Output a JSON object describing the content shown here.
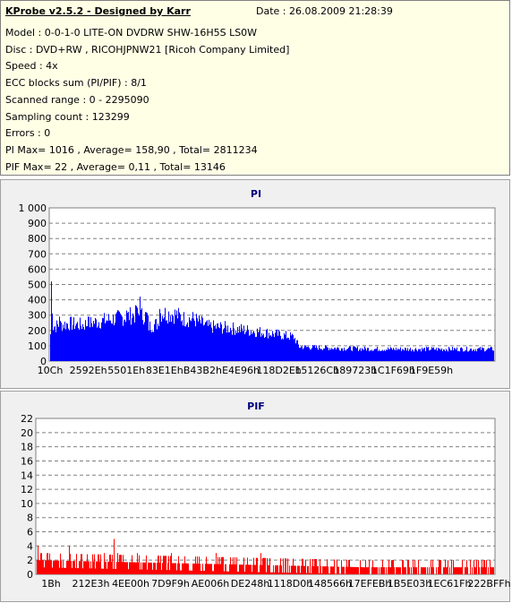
{
  "info": {
    "title": "KProbe v2.5.2 - Designed by Karr",
    "date": "Date : 26.08.2009 21:28:39",
    "lines": [
      "Model : 0-0-1-0 LITE-ON DVDRW SHW-16H5S  LS0W",
      "Disc : DVD+RW , RICOHJPNW21 [Ricoh Company Limited]",
      "Speed : 4x",
      "ECC blocks sum (PI/PIF) : 8/1",
      "Scanned range : 0 - 2295090",
      "Sampling count : 123299",
      "Errors : 0",
      "PI Max= 1016 , Average= 158,90 , Total= 2811234",
      "PIF Max= 22 , Average= 0,11 , Total= 13146"
    ]
  },
  "chart_data": [
    {
      "type": "bar",
      "title": "PI",
      "color": "#0000ff",
      "ylim": [
        0,
        1000
      ],
      "yticks": [
        0,
        100,
        200,
        300,
        400,
        500,
        600,
        700,
        800,
        900,
        1000
      ],
      "ytick_labels": [
        "0",
        "100",
        "200",
        "300",
        "400",
        "500",
        "600",
        "700",
        "800",
        "900",
        "1 000"
      ],
      "xtick_labels": [
        "10Ch",
        "2592Eh",
        "5501Eh",
        "83E1Eh",
        "B43B2h",
        "E4E96h",
        "118D2Eh",
        "15126Ch",
        "189723h",
        "1C1F69h",
        "1F9E59h"
      ],
      "profile": [
        [
          0,
          180
        ],
        [
          1,
          520
        ],
        [
          3,
          230
        ],
        [
          20,
          250
        ],
        [
          35,
          240
        ],
        [
          50,
          260
        ],
        [
          80,
          290
        ],
        [
          95,
          310
        ],
        [
          108,
          300
        ],
        [
          110,
          230
        ],
        [
          120,
          250
        ],
        [
          122,
          320
        ],
        [
          140,
          310
        ],
        [
          150,
          280
        ],
        [
          160,
          280
        ],
        [
          176,
          230
        ],
        [
          200,
          220
        ],
        [
          240,
          190
        ],
        [
          272,
          160
        ],
        [
          278,
          95
        ],
        [
          300,
          90
        ],
        [
          330,
          85
        ],
        [
          365,
          80
        ]
      ],
      "spikes": [
        [
          1,
          520
        ],
        [
          10,
          290
        ],
        [
          42,
          290
        ],
        [
          85,
          330
        ],
        [
          96,
          360
        ],
        [
          100,
          420
        ],
        [
          122,
          340
        ]
      ],
      "grid": true
    },
    {
      "type": "bar",
      "title": "PIF",
      "color": "#ff0000",
      "ylim": [
        0,
        22
      ],
      "yticks": [
        0,
        2,
        4,
        6,
        8,
        10,
        12,
        14,
        16,
        18,
        20,
        22
      ],
      "ytick_labels": [
        "0",
        "2",
        "4",
        "6",
        "8",
        "10",
        "12",
        "14",
        "16",
        "18",
        "20",
        "22"
      ],
      "xtick_labels": [
        "1Bh",
        "212E3h",
        "4EE00h",
        "7D9F9h",
        "AE006h",
        "DE248h",
        "1118D0h",
        "148566h",
        "17EFEBh",
        "1B5E03h",
        "1EC61Fh",
        "222BFFh"
      ],
      "profile": [
        [
          0,
          2
        ],
        [
          365,
          1
        ]
      ],
      "spikes": [
        [
          1,
          4
        ],
        [
          12,
          3
        ],
        [
          36,
          4
        ],
        [
          75,
          3
        ],
        [
          86,
          5
        ],
        [
          90,
          3
        ],
        [
          112,
          3
        ],
        [
          150,
          3
        ],
        [
          200,
          3
        ],
        [
          250,
          3
        ],
        [
          300,
          2
        ],
        [
          340,
          2
        ]
      ],
      "grid": true
    }
  ]
}
